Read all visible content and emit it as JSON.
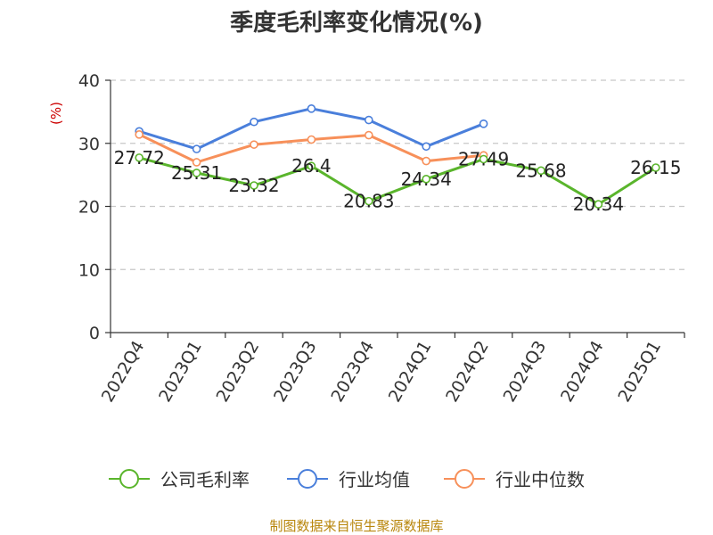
{
  "chart_data": {
    "type": "line",
    "title": "季度毛利率变化情况(%)",
    "ylabel": "(%)",
    "ylim": [
      0,
      40
    ],
    "yticks": [
      0,
      10,
      20,
      30,
      40
    ],
    "grid": true,
    "legend_position": "bottom",
    "categories": [
      "2022Q4",
      "2023Q1",
      "2023Q2",
      "2023Q3",
      "2023Q4",
      "2024Q1",
      "2024Q2",
      "2024Q3",
      "2024Q4",
      "2025Q1"
    ],
    "series": [
      {
        "name": "公司毛利率",
        "color": "#5ab52c",
        "values": [
          27.72,
          25.31,
          23.32,
          26.4,
          20.83,
          24.34,
          27.49,
          25.68,
          20.34,
          26.15
        ],
        "labels": [
          "27.72",
          "25.31",
          "23.32",
          "26.4",
          "20.83",
          "24.34",
          "27.49",
          "25.68",
          "20.34",
          "26.15"
        ]
      },
      {
        "name": "行业均值",
        "color": "#4a7fdb",
        "values": [
          31.9,
          29.1,
          33.4,
          35.5,
          33.7,
          29.5,
          33.1,
          null,
          null,
          null
        ]
      },
      {
        "name": "行业中位数",
        "color": "#f7905a",
        "values": [
          31.4,
          27.0,
          29.8,
          30.6,
          31.3,
          27.2,
          28.1,
          null,
          null,
          null
        ]
      }
    ]
  },
  "source_text": "制图数据来自恒生聚源数据库"
}
